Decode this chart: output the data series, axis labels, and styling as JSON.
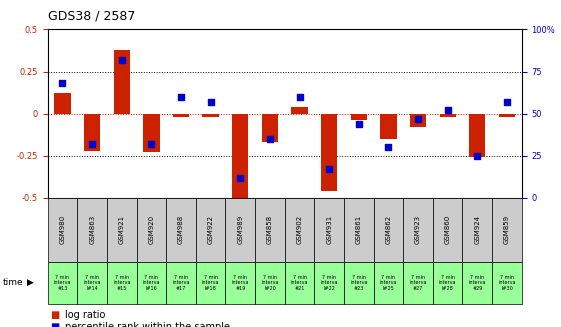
{
  "title": "GDS38 / 2587",
  "samples": [
    "GSM980",
    "GSM863",
    "GSM921",
    "GSM920",
    "GSM988",
    "GSM922",
    "GSM989",
    "GSM858",
    "GSM902",
    "GSM931",
    "GSM861",
    "GSM862",
    "GSM923",
    "GSM860",
    "GSM924",
    "GSM859"
  ],
  "time_labels": [
    "7 min\ninterva\n#13",
    "7 min\ninterva\nl#14",
    "7 min\ninterva\n#15",
    "7 min\ninterva\nl#16",
    "7 min\ninterva\n#17",
    "7 min\ninterva\nl#18",
    "7 min\ninterva\n#19",
    "7 min\ninterva\nl#20",
    "7 min\ninterva\n#21",
    "7 min\ninterva\nl#22",
    "7 min\ninterva\n#23",
    "7 min\ninterva\nl#25",
    "7 min\ninterva\n#27",
    "7 min\ninterva\nl#28",
    "7 min\ninterva\n#29",
    "7 min\ninterva\nl#30"
  ],
  "log_ratio": [
    0.12,
    -0.22,
    0.38,
    -0.23,
    -0.02,
    -0.02,
    -0.52,
    -0.17,
    0.04,
    -0.46,
    -0.04,
    -0.15,
    -0.08,
    -0.02,
    -0.26,
    -0.02
  ],
  "percentile": [
    68,
    32,
    82,
    32,
    60,
    57,
    12,
    35,
    60,
    17,
    44,
    30,
    47,
    52,
    25,
    57
  ],
  "bar_color": "#cc2200",
  "pct_color": "#0000cc",
  "bg_color": "#ffffff",
  "ylim_left": [
    -0.5,
    0.5
  ],
  "ylim_right": [
    0,
    100
  ],
  "yticks_left": [
    -0.5,
    -0.25,
    0,
    0.25,
    0.5
  ],
  "yticks_right": [
    0,
    25,
    50,
    75,
    100
  ],
  "title_fontsize": 9,
  "tick_fontsize": 6,
  "legend_fontsize": 7,
  "header_bg": "#cccccc",
  "time_bg": "#99ff99"
}
